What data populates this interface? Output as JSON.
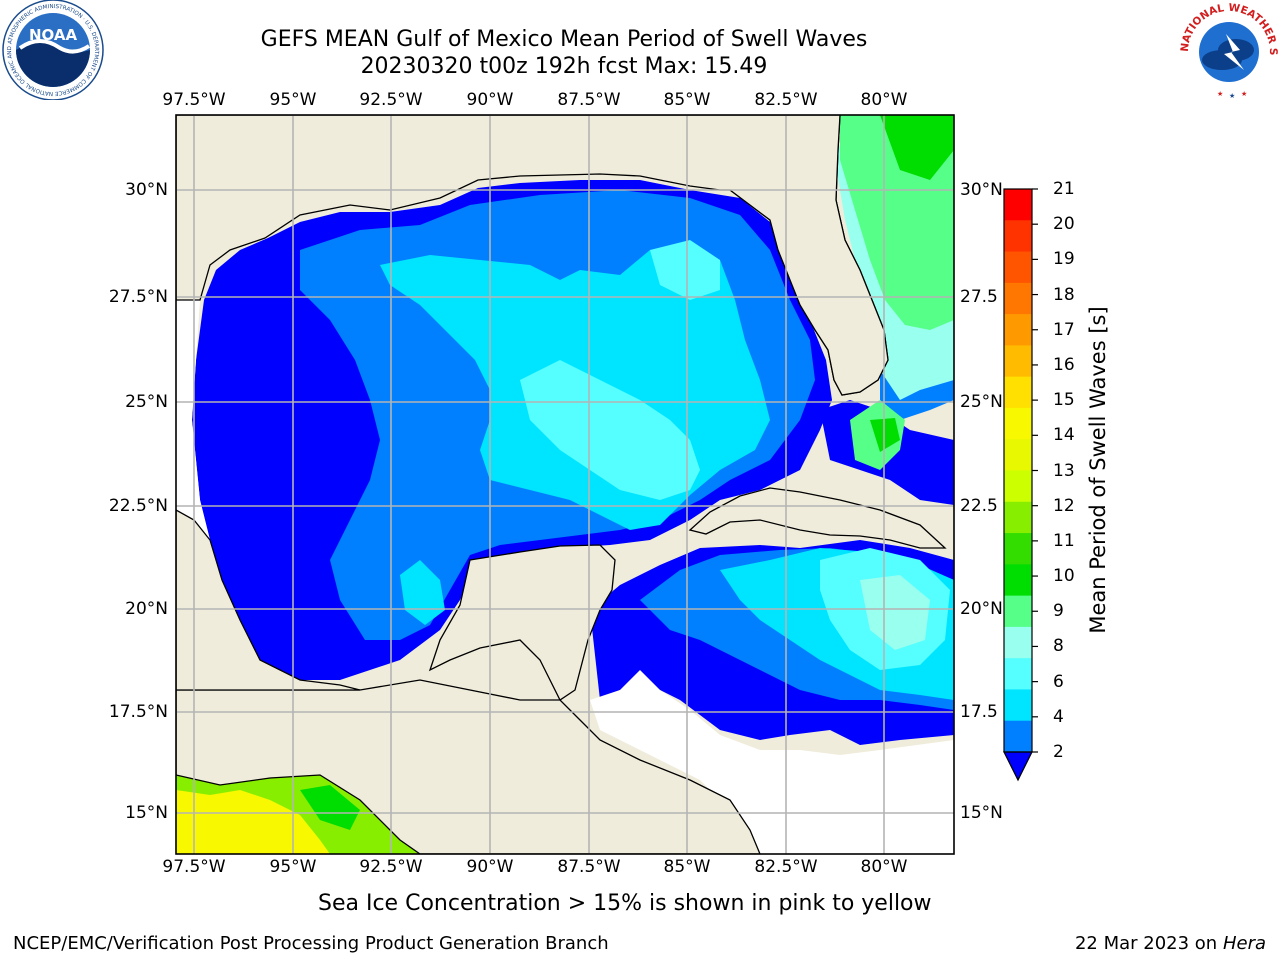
{
  "title_line1": "GEFS MEAN Gulf of Mexico Mean Period of Swell Waves",
  "title_line2": "20230320 t00z 192h fcst   Max: 15.49",
  "logos": {
    "noaa_text": "NOAA",
    "noaa_ring": "NATIONAL OCEANIC AND ATMOSPHERIC ADMINISTRATION · U.S. DEPARTMENT OF COMMERCE",
    "nws_ring": "NATIONAL WEATHER SERVICE"
  },
  "axes": {
    "lon_labels": [
      "97.5°W",
      "95°W",
      "92.5°W",
      "90°W",
      "87.5°W",
      "85°W",
      "82.5°W",
      "80°W"
    ],
    "lat_labels_left": [
      "30°N",
      "27.5°N",
      "25°N",
      "22.5°N",
      "20°N",
      "17.5°N",
      "15°N"
    ],
    "lat_labels_right": [
      "30°N",
      "27.5",
      "25°N",
      "22.5",
      "20°N",
      "17.5",
      "15°N"
    ]
  },
  "colorbar": {
    "title": "Mean Period of Swell Waves [s]",
    "ticks": [
      "21",
      "20",
      "19",
      "18",
      "17",
      "16",
      "15",
      "14",
      "13",
      "12",
      "11",
      "10",
      "9",
      "8",
      "6",
      "4",
      "2"
    ],
    "colors": [
      "#ff0000",
      "#ff3300",
      "#ff5500",
      "#ff7700",
      "#ff9900",
      "#ffbb00",
      "#ffe000",
      "#f8f800",
      "#e8f800",
      "#ccff00",
      "#88ee00",
      "#33dd00",
      "#00dd00",
      "#55ff88",
      "#99ffee",
      "#55ffff",
      "#00e5ff",
      "#0080ff"
    ],
    "under_color": "#0000ff"
  },
  "note": "Sea Ice Concentration > 15% is shown in pink to yellow",
  "footer_left": "NCEP/EMC/Verification Post Processing Product Generation Branch",
  "footer_date": "22 Mar 2023 on",
  "footer_host": "Hera",
  "colors": {
    "land": "#efecdb",
    "grid": "#b4b4b4",
    "level_2": "#0000ff",
    "level_4": "#0080ff",
    "level_6": "#00e5ff",
    "level_8": "#55ffff",
    "level_9": "#99ffee",
    "level_10": "#55ff88",
    "level_11": "#00dd00",
    "level_12": "#88ee00",
    "level_14": "#f8f800"
  }
}
